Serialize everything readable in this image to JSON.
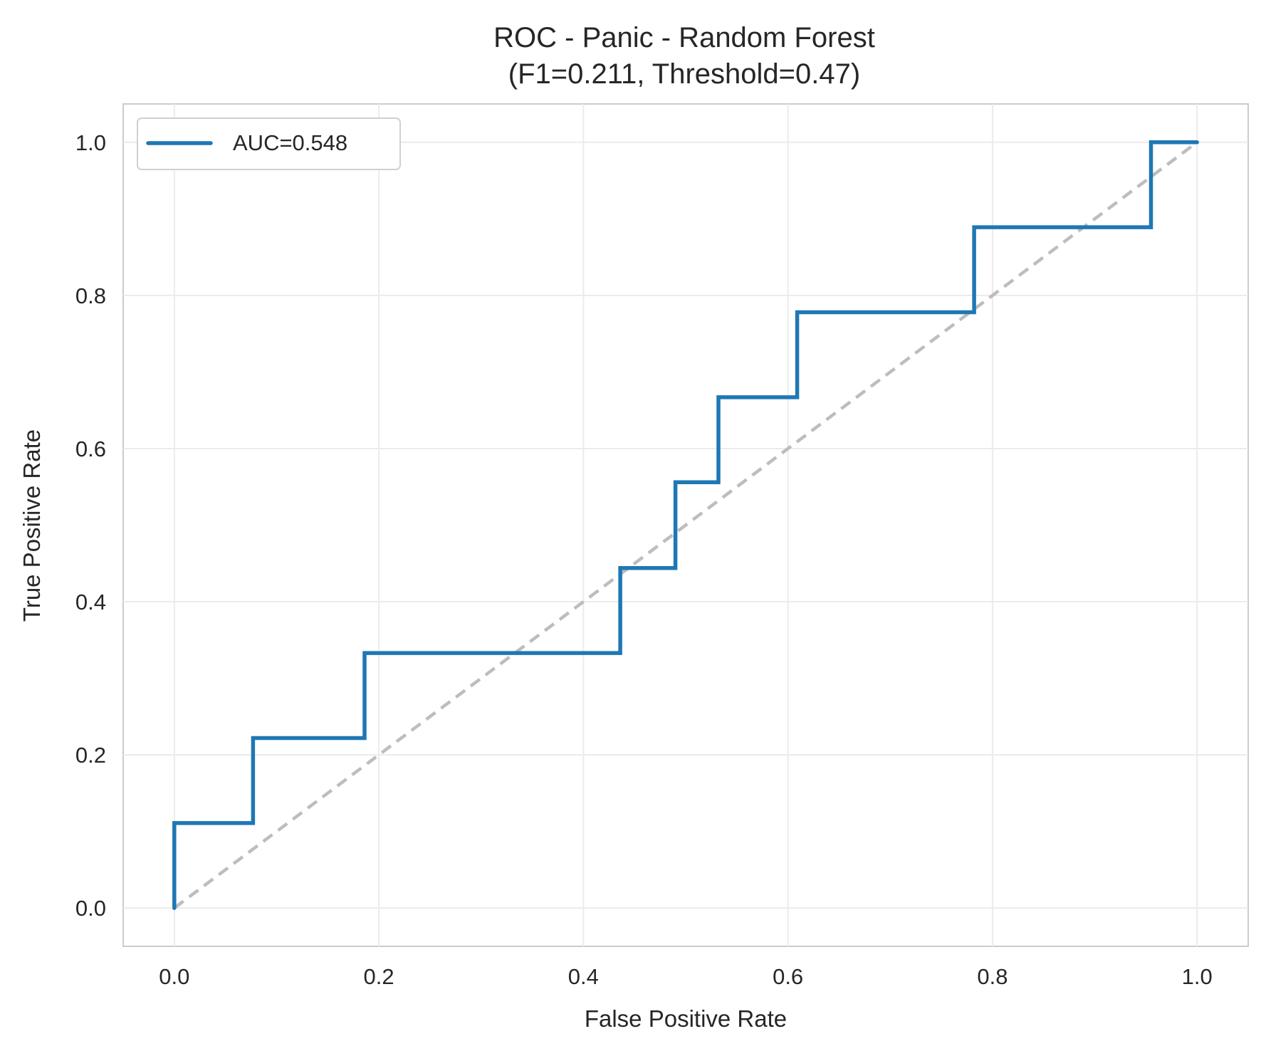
{
  "chart_data": {
    "type": "line",
    "title": "ROC - Panic - Random Forest",
    "subtitle": "(F1=0.211, Threshold=0.47)",
    "xlabel": "False Positive Rate",
    "ylabel": "True Positive Rate",
    "xlim": [
      -0.05,
      1.05
    ],
    "ylim": [
      -0.05,
      1.05
    ],
    "x_ticks": [
      "0.0",
      "0.2",
      "0.4",
      "0.6",
      "0.8",
      "1.0"
    ],
    "y_ticks": [
      "0.0",
      "0.2",
      "0.4",
      "0.6",
      "0.8",
      "1.0"
    ],
    "grid": true,
    "legend_position": "upper-left",
    "series": [
      {
        "name": "AUC=0.548",
        "color": "#1f77b4",
        "style": "solid",
        "x": [
          0.0,
          0.0,
          0.077,
          0.077,
          0.186,
          0.186,
          0.436,
          0.436,
          0.49,
          0.49,
          0.532,
          0.532,
          0.609,
          0.609,
          0.782,
          0.782,
          0.955,
          0.955,
          1.0
        ],
        "y": [
          0.0,
          0.111,
          0.111,
          0.222,
          0.222,
          0.333,
          0.333,
          0.444,
          0.444,
          0.556,
          0.556,
          0.667,
          0.667,
          0.778,
          0.778,
          0.889,
          0.889,
          1.0,
          1.0
        ]
      },
      {
        "color": "#bdbdbd",
        "style": "dashed",
        "x": [
          0.0,
          1.0
        ],
        "y": [
          0.0,
          1.0
        ]
      }
    ]
  }
}
